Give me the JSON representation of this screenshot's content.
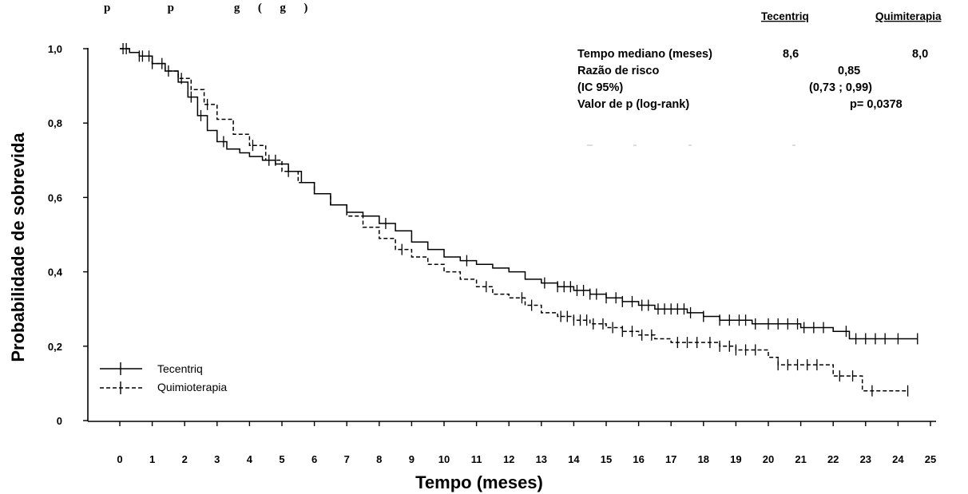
{
  "caption_fragment": "p                   p                    g      (      g      )",
  "chart_data": {
    "type": "line",
    "subtype": "kaplan-meier",
    "xlabel": "Tempo (meses)",
    "ylabel": "Probabilidade de sobrevida",
    "xlim": [
      0,
      25
    ],
    "ylim": [
      0,
      1
    ],
    "x_ticks": [
      "0",
      "1",
      "2",
      "3",
      "4",
      "5",
      "6",
      "7",
      "8",
      "9",
      "10",
      "11",
      "12",
      "13",
      "14",
      "15",
      "16",
      "17",
      "18",
      "19",
      "20",
      "21",
      "22",
      "23",
      "24",
      "25"
    ],
    "y_ticks": [
      "0",
      "0,2",
      "0,4",
      "0,6",
      "0,8",
      "1,0"
    ],
    "grid": false,
    "legend_position": "bottom-left",
    "series": [
      {
        "name": "Tecentriq",
        "style": "solid",
        "color": "#000000",
        "points": [
          [
            0,
            1.0
          ],
          [
            0.3,
            0.99
          ],
          [
            0.6,
            0.98
          ],
          [
            1.0,
            0.96
          ],
          [
            1.4,
            0.94
          ],
          [
            1.8,
            0.91
          ],
          [
            2.1,
            0.87
          ],
          [
            2.4,
            0.82
          ],
          [
            2.7,
            0.78
          ],
          [
            3.0,
            0.75
          ],
          [
            3.3,
            0.73
          ],
          [
            3.7,
            0.72
          ],
          [
            4.0,
            0.71
          ],
          [
            4.4,
            0.7
          ],
          [
            4.8,
            0.69
          ],
          [
            5.2,
            0.67
          ],
          [
            5.6,
            0.64
          ],
          [
            6.0,
            0.61
          ],
          [
            6.5,
            0.58
          ],
          [
            7.0,
            0.56
          ],
          [
            7.5,
            0.55
          ],
          [
            8.0,
            0.53
          ],
          [
            8.5,
            0.51
          ],
          [
            9.0,
            0.48
          ],
          [
            9.5,
            0.46
          ],
          [
            10.0,
            0.44
          ],
          [
            10.5,
            0.43
          ],
          [
            11.0,
            0.42
          ],
          [
            11.5,
            0.41
          ],
          [
            12.0,
            0.4
          ],
          [
            12.5,
            0.38
          ],
          [
            13.0,
            0.37
          ],
          [
            13.5,
            0.36
          ],
          [
            14.0,
            0.35
          ],
          [
            14.5,
            0.34
          ],
          [
            15.0,
            0.33
          ],
          [
            15.5,
            0.32
          ],
          [
            16.0,
            0.31
          ],
          [
            16.5,
            0.3
          ],
          [
            17.0,
            0.3
          ],
          [
            17.5,
            0.29
          ],
          [
            18.0,
            0.28
          ],
          [
            18.5,
            0.27
          ],
          [
            19.0,
            0.27
          ],
          [
            19.5,
            0.26
          ],
          [
            20.0,
            0.26
          ],
          [
            20.5,
            0.26
          ],
          [
            21.0,
            0.25
          ],
          [
            21.5,
            0.25
          ],
          [
            22.0,
            0.24
          ],
          [
            22.5,
            0.22
          ],
          [
            23.0,
            0.22
          ],
          [
            23.5,
            0.22
          ],
          [
            24.0,
            0.22
          ],
          [
            24.6,
            0.22
          ]
        ],
        "censor_x": [
          0.1,
          0.6,
          0.9,
          1.3,
          2.2,
          2.5,
          3.2,
          4.6,
          5.2,
          8.2,
          10.7,
          13.1,
          13.5,
          13.7,
          13.9,
          14.1,
          14.3,
          14.5,
          14.7,
          15.0,
          15.3,
          15.5,
          15.8,
          16.1,
          16.3,
          16.6,
          16.8,
          17.0,
          17.2,
          17.4,
          17.6,
          18.0,
          18.5,
          18.8,
          19.1,
          19.3,
          19.6,
          20.0,
          20.3,
          20.6,
          20.9,
          21.1,
          21.4,
          21.7,
          22.4,
          22.7,
          23.0,
          23.3,
          23.6,
          24.0,
          24.6
        ],
        "median_months": "8,6"
      },
      {
        "name": "Quimioterapia",
        "style": "dashed",
        "color": "#000000",
        "points": [
          [
            0,
            1.0
          ],
          [
            0.3,
            0.99
          ],
          [
            0.6,
            0.98
          ],
          [
            1.0,
            0.96
          ],
          [
            1.4,
            0.94
          ],
          [
            1.8,
            0.92
          ],
          [
            2.2,
            0.89
          ],
          [
            2.6,
            0.85
          ],
          [
            3.0,
            0.81
          ],
          [
            3.5,
            0.77
          ],
          [
            4.0,
            0.74
          ],
          [
            4.5,
            0.7
          ],
          [
            5.0,
            0.67
          ],
          [
            5.5,
            0.64
          ],
          [
            6.0,
            0.61
          ],
          [
            6.5,
            0.58
          ],
          [
            7.0,
            0.55
          ],
          [
            7.5,
            0.52
          ],
          [
            8.0,
            0.49
          ],
          [
            8.5,
            0.46
          ],
          [
            9.0,
            0.44
          ],
          [
            9.5,
            0.42
          ],
          [
            10.0,
            0.4
          ],
          [
            10.5,
            0.38
          ],
          [
            11.0,
            0.36
          ],
          [
            11.5,
            0.34
          ],
          [
            12.0,
            0.33
          ],
          [
            12.5,
            0.31
          ],
          [
            13.0,
            0.29
          ],
          [
            13.5,
            0.28
          ],
          [
            14.0,
            0.27
          ],
          [
            14.5,
            0.26
          ],
          [
            15.0,
            0.25
          ],
          [
            15.5,
            0.24
          ],
          [
            16.0,
            0.23
          ],
          [
            16.5,
            0.22
          ],
          [
            17.0,
            0.21
          ],
          [
            17.5,
            0.21
          ],
          [
            18.0,
            0.21
          ],
          [
            18.5,
            0.2
          ],
          [
            19.0,
            0.19
          ],
          [
            19.5,
            0.19
          ],
          [
            20.0,
            0.17
          ],
          [
            20.3,
            0.15
          ],
          [
            21.0,
            0.15
          ],
          [
            21.8,
            0.15
          ],
          [
            22.0,
            0.12
          ],
          [
            22.5,
            0.12
          ],
          [
            22.9,
            0.08
          ],
          [
            23.5,
            0.08
          ],
          [
            24.3,
            0.08
          ]
        ],
        "censor_x": [
          0.2,
          0.7,
          1.0,
          1.5,
          1.9,
          2.7,
          4.1,
          4.8,
          8.7,
          11.3,
          12.4,
          12.7,
          13.6,
          13.8,
          14.0,
          14.2,
          14.4,
          14.6,
          14.9,
          15.2,
          15.5,
          15.8,
          16.1,
          16.4,
          17.2,
          17.5,
          17.8,
          18.2,
          18.5,
          18.8,
          19.0,
          19.3,
          19.6,
          20.3,
          20.6,
          20.9,
          21.2,
          21.5,
          22.2,
          22.6,
          23.2,
          24.3
        ],
        "median_months": "8,0"
      }
    ]
  },
  "stats": {
    "header_a": "Tecentriq",
    "header_b": "Quimiterapia",
    "median_label": "Tempo mediano (meses)",
    "median_a": "8,6",
    "median_b": "8,0",
    "hr_label": "Razão de risco",
    "hr_value": "0,85",
    "ci_label": "(IC 95%)",
    "ci_value": "(0,73 ; 0,99)",
    "p_label": "Valor de p (log-rank)",
    "p_value": "p= 0,0378"
  },
  "legend": {
    "item_a": "Tecentriq",
    "item_b": "Quimioterapia"
  }
}
